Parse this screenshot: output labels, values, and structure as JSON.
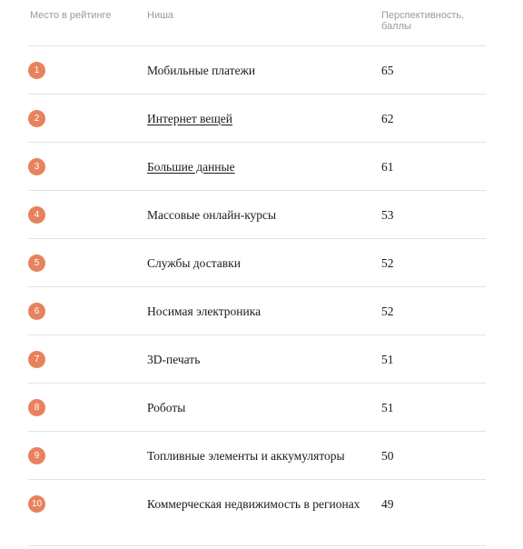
{
  "table": {
    "headers": {
      "rank": "Место в рейтинге",
      "niche": "Ниша",
      "score": "Перспективность, баллы"
    },
    "rows": [
      {
        "rank": "1",
        "niche": "Мобильные платежи",
        "score": "65",
        "link": false
      },
      {
        "rank": "2",
        "niche": "Интернет вещей",
        "score": "62",
        "link": true
      },
      {
        "rank": "3",
        "niche": "Большие данные",
        "score": "61",
        "link": true
      },
      {
        "rank": "4",
        "niche": "Массовые онлайн-курсы",
        "score": "53",
        "link": false
      },
      {
        "rank": "5",
        "niche": "Службы доставки",
        "score": "52",
        "link": false
      },
      {
        "rank": "6",
        "niche": "Носимая электроника",
        "score": "52",
        "link": false
      },
      {
        "rank": "7",
        "niche": "3D-печать",
        "score": "51",
        "link": false
      },
      {
        "rank": "8",
        "niche": "Роботы",
        "score": "51",
        "link": false
      },
      {
        "rank": "9",
        "niche": "Топливные элементы и аккумуляторы",
        "score": "50",
        "link": false
      },
      {
        "rank": "10",
        "niche": "Коммерческая недвижимость в регионах",
        "score": "49",
        "link": false
      }
    ]
  },
  "colors": {
    "rank_badge": "#e8825c",
    "divider": "#e3e3e3",
    "header_text": "#9a9a9a"
  }
}
